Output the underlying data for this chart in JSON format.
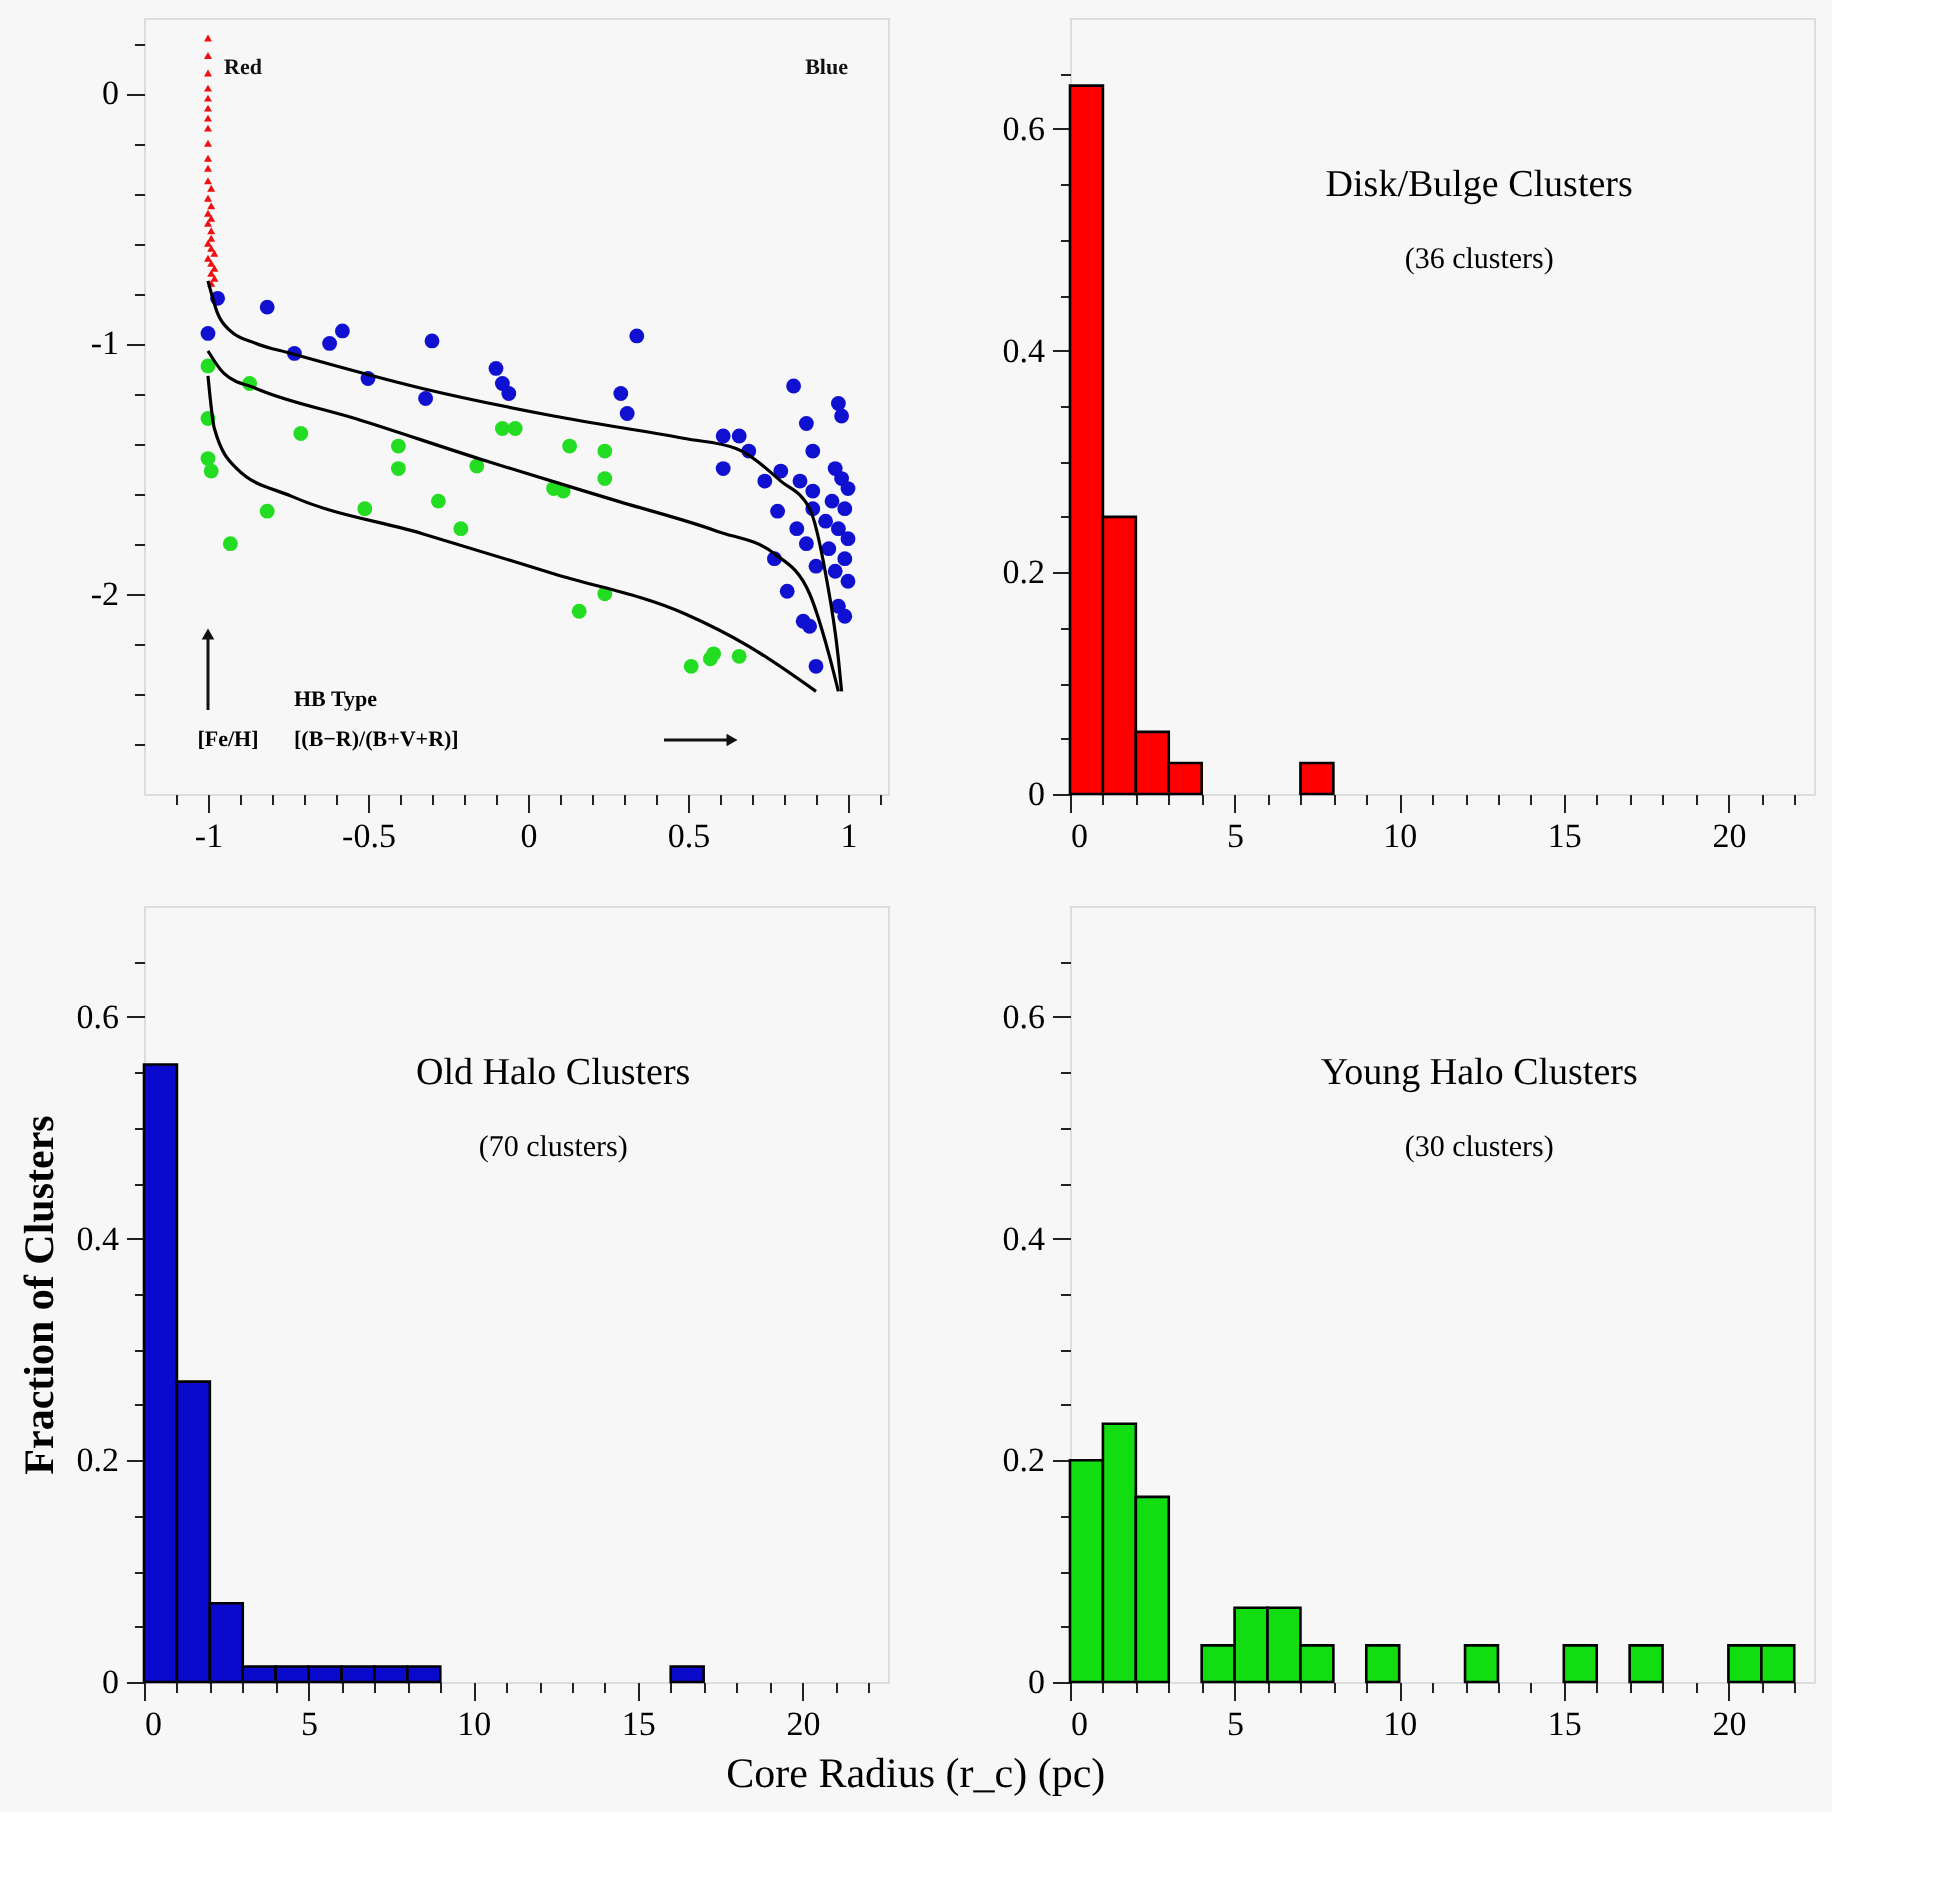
{
  "chart_data": [
    {
      "type": "scatter",
      "xlabel": "HB Type\n[(B−R)/(B+V+R)]",
      "ylabel": "[Fe/H]",
      "xlim": [
        -1.2,
        1.125
      ],
      "ylim": [
        -2.8,
        0.3
      ],
      "xticks": [
        {
          "value": -1.1,
          "label": null
        },
        -1,
        {
          "value": -0.9,
          "label": null
        },
        {
          "value": -0.8,
          "label": null
        },
        {
          "value": -0.7,
          "label": null
        },
        {
          "value": -0.6,
          "label": null
        },
        -0.5,
        {
          "value": -0.4,
          "label": null
        },
        {
          "value": -0.3,
          "label": null
        },
        {
          "value": -0.2,
          "label": null
        },
        {
          "value": -0.1,
          "label": null
        },
        0,
        {
          "value": 0.1,
          "label": null
        },
        {
          "value": 0.2,
          "label": null
        },
        {
          "value": 0.3,
          "label": null
        },
        {
          "value": 0.4,
          "label": null
        },
        0.5,
        {
          "value": 0.6,
          "label": null
        },
        {
          "value": 0.7,
          "label": null
        },
        {
          "value": 0.8,
          "label": null
        },
        {
          "value": 0.9,
          "label": null
        },
        1,
        {
          "value": 1.1,
          "label": null
        }
      ],
      "yticks": [
        {
          "value": -2.6,
          "label": null
        },
        {
          "value": -2.4,
          "label": null
        },
        {
          "value": -2.2,
          "label": null
        },
        -2,
        {
          "value": -1.8,
          "label": null
        },
        {
          "value": -1.6,
          "label": null
        },
        {
          "value": -1.4,
          "label": null
        },
        {
          "value": -1.2,
          "label": null
        },
        -1,
        {
          "value": -0.8,
          "label": null
        },
        {
          "value": -0.6,
          "label": null
        },
        {
          "value": -0.4,
          "label": null
        },
        {
          "value": -0.2,
          "label": null
        },
        0,
        {
          "value": 0.2,
          "label": null
        }
      ],
      "annotations": [
        "Red",
        "Blue"
      ],
      "series": [
        {
          "color": "#ee1111",
          "marker": "triangle",
          "x": [
            -1,
            -1,
            -1,
            -1,
            -1,
            -1,
            -1,
            -1,
            -1,
            -1,
            -1,
            -1,
            -0.99,
            -1,
            -0.99,
            -1,
            -0.99,
            -1,
            -0.99,
            -0.99,
            -1,
            -0.99,
            -0.98,
            -1,
            -0.99,
            -0.98,
            -0.99,
            -0.98,
            -0.99
          ],
          "values": [
            0.22,
            0.15,
            0.08,
            0.02,
            -0.02,
            -0.06,
            -0.1,
            -0.14,
            -0.2,
            -0.26,
            -0.3,
            -0.35,
            -0.38,
            -0.42,
            -0.45,
            -0.48,
            -0.5,
            -0.52,
            -0.55,
            -0.58,
            -0.6,
            -0.62,
            -0.64,
            -0.66,
            -0.68,
            -0.7,
            -0.72,
            -0.74,
            -0.76
          ]
        },
        {
          "color": "#1010d0",
          "marker": "circle",
          "x": [
            -0.97,
            -0.815,
            -1,
            -0.73,
            -0.62,
            -0.58,
            -0.3,
            -0.5,
            -0.32,
            -0.1,
            -0.08,
            -0.06,
            0.34,
            0.29,
            0.31,
            0.61,
            0.66,
            0.69,
            0.61,
            0.74,
            0.83,
            0.87,
            0.89,
            0.79,
            0.85,
            0.89,
            0.78,
            0.84,
            0.89,
            0.77,
            0.87,
            0.9,
            0.81,
            0.86,
            0.88,
            0.9,
            0.97,
            0.98,
            0.96,
            0.98,
            1.0,
            0.95,
            0.99,
            0.93,
            0.97,
            1.0,
            0.94,
            0.99,
            0.96,
            1.0,
            0.97,
            0.99
          ],
          "values": [
            -0.82,
            -0.855,
            -0.96,
            -1.04,
            -1.0,
            -0.95,
            -0.99,
            -1.14,
            -1.22,
            -1.1,
            -1.16,
            -1.2,
            -0.97,
            -1.2,
            -1.28,
            -1.37,
            -1.37,
            -1.43,
            -1.5,
            -1.55,
            -1.17,
            -1.32,
            -1.43,
            -1.51,
            -1.55,
            -1.59,
            -1.67,
            -1.74,
            -1.66,
            -1.86,
            -1.8,
            -1.89,
            -1.99,
            -2.11,
            -2.13,
            -2.29,
            -1.24,
            -1.29,
            -1.5,
            -1.54,
            -1.58,
            -1.63,
            -1.66,
            -1.71,
            -1.74,
            -1.78,
            -1.82,
            -1.86,
            -1.91,
            -1.95,
            -2.05,
            -2.09
          ]
        },
        {
          "color": "#22dd22",
          "marker": "circle",
          "x": [
            -1,
            -1,
            -1,
            -0.99,
            -0.87,
            -0.71,
            -0.815,
            -0.93,
            -0.405,
            -0.405,
            -0.51,
            -0.28,
            -0.21,
            -0.16,
            -0.08,
            -0.04,
            0.08,
            0.11,
            0.13,
            0.24,
            0.24,
            0.16,
            0.24,
            0.51,
            0.57,
            0.58,
            0.66
          ],
          "values": [
            -1.09,
            -1.3,
            -1.46,
            -1.51,
            -1.16,
            -1.36,
            -1.67,
            -1.8,
            -1.41,
            -1.5,
            -1.66,
            -1.63,
            -1.74,
            -1.49,
            -1.34,
            -1.34,
            -1.58,
            -1.59,
            -1.41,
            -1.43,
            -1.54,
            -2.07,
            -2.0,
            -2.29,
            -2.26,
            -2.24,
            -2.25
          ]
        },
        {
          "type": "line",
          "marker": "none",
          "color": "#000000",
          "x": [
            -1,
            -0.97,
            -0.93,
            -0.85,
            -0.74,
            -0.33,
            0.08,
            0.49,
            0.65,
            0.79,
            0.88,
            0.93,
            0.97,
            0.98
          ],
          "values": [
            -0.75,
            -0.88,
            -0.95,
            -1.0,
            -1.04,
            -1.18,
            -1.29,
            -1.38,
            -1.42,
            -1.55,
            -1.66,
            -1.92,
            -2.26,
            -2.39
          ]
        },
        {
          "type": "line",
          "marker": "none",
          "color": "#000000",
          "x": [
            -1,
            -0.95,
            -0.85,
            -0.54,
            -0.13,
            0.28,
            0.59,
            0.77,
            0.88,
            0.94,
            0.97
          ],
          "values": [
            -1.03,
            -1.12,
            -1.18,
            -1.3,
            -1.47,
            -1.63,
            -1.75,
            -1.84,
            -2.0,
            -2.24,
            -2.39
          ]
        },
        {
          "type": "line",
          "marker": "none",
          "color": "#000000",
          "x": [
            -1,
            -0.98,
            -0.91,
            -0.74,
            -0.33,
            0.08,
            0.49,
            0.69,
            0.9
          ],
          "values": [
            -1.13,
            -1.34,
            -1.5,
            -1.61,
            -1.76,
            -1.92,
            -2.08,
            -2.21,
            -2.39
          ]
        }
      ]
    },
    {
      "type": "histogram",
      "title": "Disk/Bulge Clusters",
      "subtitle": "(36 clusters)",
      "color": "#ff0000",
      "bins": [
        0,
        1,
        2,
        3,
        4,
        5,
        6,
        7,
        8
      ],
      "values": [
        0.639,
        0.25,
        0.056,
        0.028,
        0,
        0,
        0,
        0.028
      ],
      "xlim": [
        0,
        22.6
      ],
      "ylim": [
        0,
        0.7
      ],
      "xticks": [
        0,
        {
          "value": 1,
          "label": null
        },
        {
          "value": 2,
          "label": null
        },
        {
          "value": 3,
          "label": null
        },
        {
          "value": 4,
          "label": null
        },
        5,
        {
          "value": 6,
          "label": null
        },
        {
          "value": 7,
          "label": null
        },
        {
          "value": 8,
          "label": null
        },
        {
          "value": 9,
          "label": null
        },
        10,
        {
          "value": 11,
          "label": null
        },
        {
          "value": 12,
          "label": null
        },
        {
          "value": 13,
          "label": null
        },
        {
          "value": 14,
          "label": null
        },
        15,
        {
          "value": 16,
          "label": null
        },
        {
          "value": 17,
          "label": null
        },
        {
          "value": 18,
          "label": null
        },
        {
          "value": 19,
          "label": null
        },
        20,
        {
          "value": 21,
          "label": null
        },
        {
          "value": 22,
          "label": null
        }
      ],
      "yticks": [
        0,
        {
          "value": 0.05,
          "label": null
        },
        {
          "value": 0.1,
          "label": null
        },
        {
          "value": 0.15,
          "label": null
        },
        0.2,
        {
          "value": 0.25,
          "label": null
        },
        {
          "value": 0.3,
          "label": null
        },
        {
          "value": 0.35,
          "label": null
        },
        0.4,
        {
          "value": 0.45,
          "label": null
        },
        {
          "value": 0.5,
          "label": null
        },
        {
          "value": 0.55,
          "label": null
        },
        0.6,
        {
          "value": 0.65,
          "label": null
        }
      ]
    },
    {
      "type": "histogram",
      "title": "Old Halo Clusters",
      "subtitle": "(70 clusters)",
      "color": "#0a0acc",
      "ylabel": "Fraction of Clusters",
      "xlabel": "Core Radius (r_c) (pc)",
      "bins": [
        0,
        1,
        2,
        3,
        4,
        5,
        6,
        7,
        8,
        9,
        10,
        11,
        12,
        13,
        14,
        15,
        16,
        17
      ],
      "values": [
        0.557,
        0.271,
        0.071,
        0.014,
        0.014,
        0.014,
        0.014,
        0.014,
        0.014,
        0,
        0,
        0,
        0,
        0,
        0,
        0,
        0.014
      ],
      "xlim": [
        0,
        22.6
      ],
      "ylim": [
        0,
        0.7
      ],
      "xticks": [
        0,
        {
          "value": 1,
          "label": null
        },
        {
          "value": 2,
          "label": null
        },
        {
          "value": 3,
          "label": null
        },
        {
          "value": 4,
          "label": null
        },
        5,
        {
          "value": 6,
          "label": null
        },
        {
          "value": 7,
          "label": null
        },
        {
          "value": 8,
          "label": null
        },
        {
          "value": 9,
          "label": null
        },
        10,
        {
          "value": 11,
          "label": null
        },
        {
          "value": 12,
          "label": null
        },
        {
          "value": 13,
          "label": null
        },
        {
          "value": 14,
          "label": null
        },
        15,
        {
          "value": 16,
          "label": null
        },
        {
          "value": 17,
          "label": null
        },
        {
          "value": 18,
          "label": null
        },
        {
          "value": 19,
          "label": null
        },
        20,
        {
          "value": 21,
          "label": null
        },
        {
          "value": 22,
          "label": null
        }
      ],
      "yticks": [
        0,
        {
          "value": 0.05,
          "label": null
        },
        {
          "value": 0.1,
          "label": null
        },
        {
          "value": 0.15,
          "label": null
        },
        0.2,
        {
          "value": 0.25,
          "label": null
        },
        {
          "value": 0.3,
          "label": null
        },
        {
          "value": 0.35,
          "label": null
        },
        0.4,
        {
          "value": 0.45,
          "label": null
        },
        {
          "value": 0.5,
          "label": null
        },
        {
          "value": 0.55,
          "label": null
        },
        0.6,
        {
          "value": 0.65,
          "label": null
        }
      ]
    },
    {
      "type": "histogram",
      "title": "Young Halo Clusters",
      "subtitle": "(30 clusters)",
      "color": "#11dd11",
      "bins": [
        0,
        1,
        2,
        3,
        4,
        5,
        6,
        7,
        8,
        9,
        10,
        11,
        12,
        13,
        14,
        15,
        16,
        17,
        18,
        19,
        20,
        21,
        22
      ],
      "values": [
        0.2,
        0.233,
        0.167,
        0,
        0.033,
        0.067,
        0.067,
        0.033,
        0,
        0.033,
        0,
        0,
        0.033,
        0,
        0,
        0.033,
        0,
        0.033,
        0,
        0,
        0.033,
        0.033
      ],
      "xlim": [
        0,
        22.6
      ],
      "ylim": [
        0,
        0.7
      ],
      "xticks": [
        0,
        {
          "value": 1,
          "label": null
        },
        {
          "value": 2,
          "label": null
        },
        {
          "value": 3,
          "label": null
        },
        {
          "value": 4,
          "label": null
        },
        5,
        {
          "value": 6,
          "label": null
        },
        {
          "value": 7,
          "label": null
        },
        {
          "value": 8,
          "label": null
        },
        {
          "value": 9,
          "label": null
        },
        10,
        {
          "value": 11,
          "label": null
        },
        {
          "value": 12,
          "label": null
        },
        {
          "value": 13,
          "label": null
        },
        {
          "value": 14,
          "label": null
        },
        15,
        {
          "value": 16,
          "label": null
        },
        {
          "value": 17,
          "label": null
        },
        {
          "value": 18,
          "label": null
        },
        {
          "value": 19,
          "label": null
        },
        20,
        {
          "value": 21,
          "label": null
        },
        {
          "value": 22,
          "label": null
        }
      ],
      "yticks": [
        0,
        {
          "value": 0.05,
          "label": null
        },
        {
          "value": 0.1,
          "label": null
        },
        {
          "value": 0.15,
          "label": null
        },
        0.2,
        {
          "value": 0.25,
          "label": null
        },
        {
          "value": 0.3,
          "label": null
        },
        {
          "value": 0.35,
          "label": null
        },
        0.4,
        {
          "value": 0.45,
          "label": null
        },
        {
          "value": 0.5,
          "label": null
        },
        {
          "value": 0.55,
          "label": null
        },
        0.6,
        {
          "value": 0.65,
          "label": null
        }
      ]
    }
  ]
}
